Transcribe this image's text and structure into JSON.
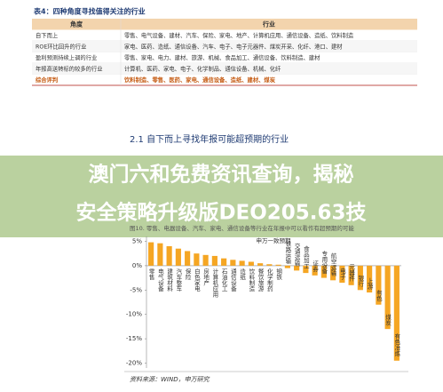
{
  "table": {
    "title": "表4：四种角度寻找值得关注的行业",
    "header": [
      "角度",
      "行业"
    ],
    "rows": [
      [
        "自下而上",
        "零售、电气设备、建材、汽车、保险、家电、地产、计算机应用、通信设备、造纸、饮料制造"
      ],
      [
        "ROE环比回升的行业",
        "家电、医药、造纸、通信设备、汽车、电子、电子元器件、煤炭开采、化纤、港口、建材"
      ],
      [
        "盈利预测持续上调的行业",
        "零售、家电、电力、建材、旅游、机械、食品加工、通信设备、饮料制造、建材"
      ],
      [
        "年报高送转标的较多的行业",
        "计算机、医药、家电、电子、化学制品、通信设备、机械、化纤"
      ],
      [
        "综合评判",
        "饮料制造、零售、医药、家电、通信设备、造纸、建材、煤炭"
      ]
    ]
  },
  "section_title": "2.1  自下而上寻找年报可能超预期的行业",
  "banner": [
    "澳门六和免费资讯查询，揭秘",
    "安全策略升级版DEO205.63技"
  ],
  "figure_caption": "图10. 零售、电器设备、汽车、家电、通信设备等行业在年报中可以看作有超预期的可能",
  "source": "资料来源：WIND，申万研究",
  "chart_data": {
    "type": "bar",
    "series": [
      {
        "name": "申万一致预期",
        "color": "#f5a623",
        "values": [
          4.8,
          4.6,
          4.0,
          3.5,
          3.0,
          2.5,
          2.2,
          2.0,
          1.5,
          1.2,
          1.0,
          0.8,
          0.5,
          0.3,
          0.2,
          -0.5,
          -1,
          -1.5,
          -2,
          -2.5,
          -3,
          -3.5,
          -4,
          -5,
          -5.5,
          -8,
          -13,
          -19.5
        ]
      }
    ],
    "categories": [
      "零售",
      "电气设备",
      "建筑材料",
      "汽车整车",
      "保险",
      "白色家电",
      "房地产",
      "计算机应用",
      "石油化工",
      "通信设备",
      "造纸",
      "饮料制造",
      "餐饮旅游",
      "化学制药",
      "钢铁",
      "铁路运输",
      "交通运输",
      "食品加工",
      "证券",
      "专用设备",
      "航空运输",
      "电子",
      "元器件",
      "银行",
      "上游",
      "有色",
      "煤炭",
      "有色冶炼"
    ],
    "ylim": [
      -21,
      6
    ],
    "yticks": [
      {
        "value": 5,
        "label": "5%"
      },
      {
        "value": 0,
        "label": "0%"
      },
      {
        "value": -5,
        "label": "-5%"
      },
      {
        "value": -10,
        "label": "-10%"
      },
      {
        "value": -15,
        "label": "-15%"
      },
      {
        "value": -20,
        "label": "-20%"
      }
    ]
  }
}
